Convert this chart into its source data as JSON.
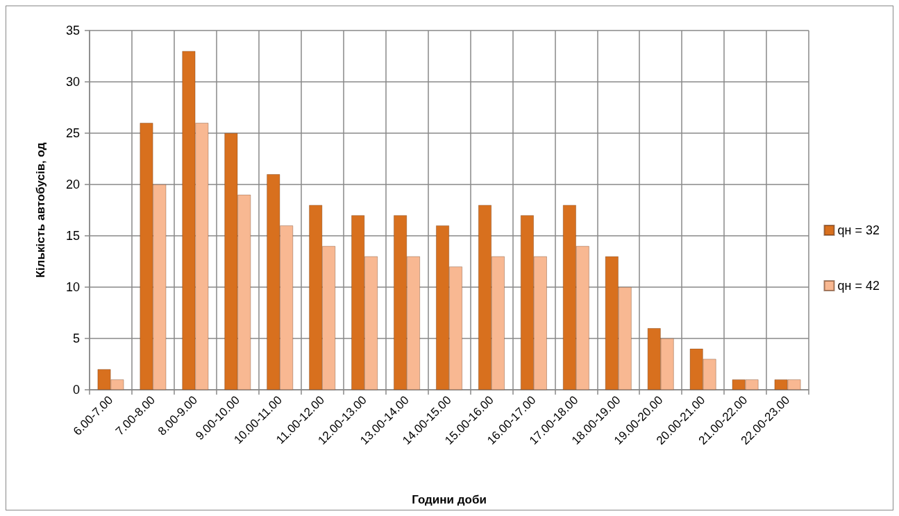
{
  "chart_data": {
    "type": "bar",
    "xlabel": "Години доби",
    "ylabel": "Кількість автобусів, од",
    "categories": [
      "6.00-7.00",
      "7.00-8.00",
      "8.00-9.00",
      "9.00-10.00",
      "10.00-11.00",
      "11.00-12.00",
      "12.00-13.00",
      "13.00-14.00",
      "14.00-15.00",
      "15.00-16.00",
      "16.00-17.00",
      "17.00-18.00",
      "18.00-19.00",
      "19.00-20.00",
      "20.00-21.00",
      "21.00-22.00",
      "22.00-23.00"
    ],
    "series": [
      {
        "name": "qн = 32",
        "color": "#d8701e",
        "values": [
          2,
          26,
          33,
          25,
          21,
          18,
          17,
          17,
          16,
          18,
          17,
          18,
          13,
          6,
          4,
          1,
          1
        ]
      },
      {
        "name": "qн = 42",
        "color": "#f8b892",
        "values": [
          1,
          20,
          26,
          19,
          16,
          14,
          13,
          13,
          12,
          13,
          13,
          14,
          10,
          5,
          3,
          1,
          1
        ]
      }
    ],
    "ylim": [
      0,
      35
    ],
    "yticks": [
      0,
      5,
      10,
      15,
      20,
      25,
      30,
      35
    ],
    "grid": true,
    "legend": "right"
  }
}
